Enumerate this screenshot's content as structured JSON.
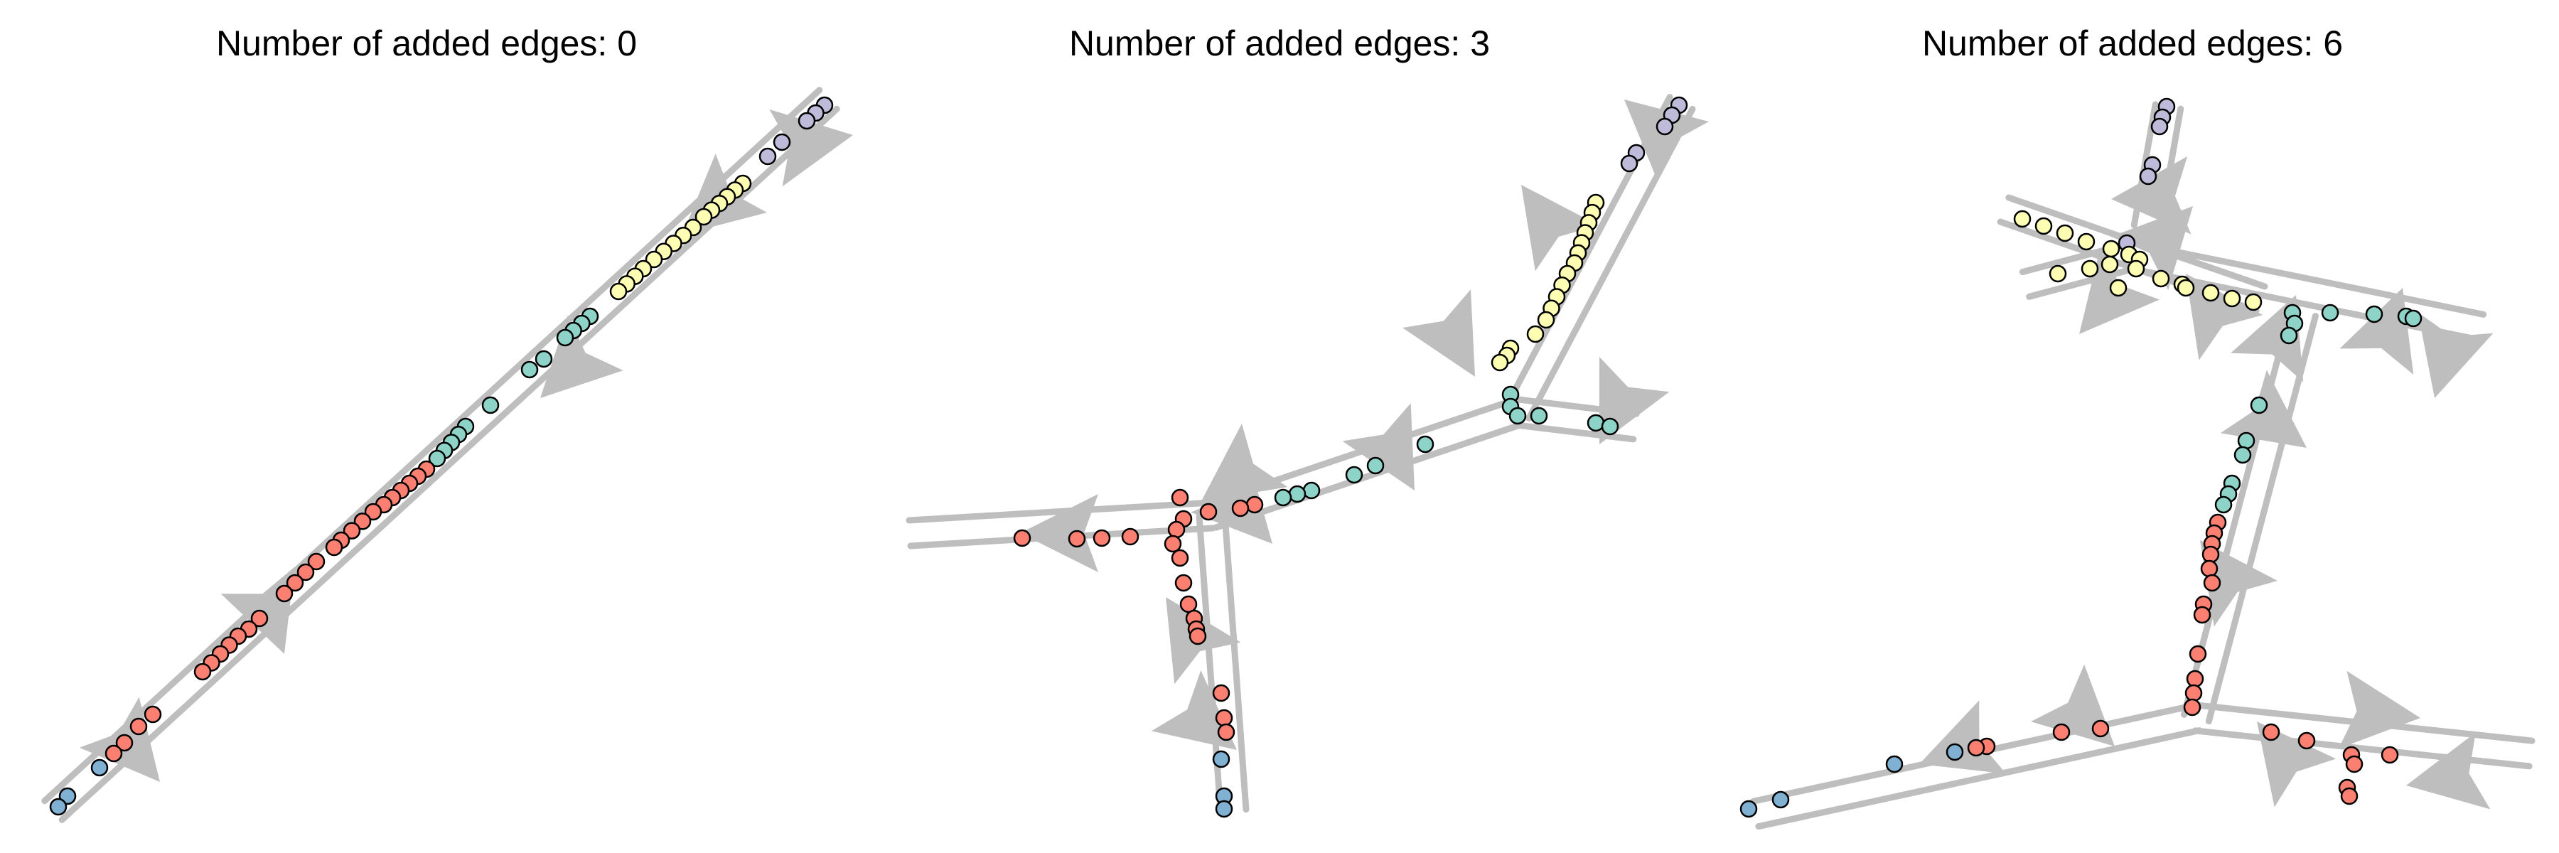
{
  "panels": [
    {
      "title": "Number of added edges: 0"
    },
    {
      "title": "Number of added edges: 3"
    },
    {
      "title": "Number of added edges: 6"
    }
  ],
  "colors": {
    "edge": "#bebebe",
    "arrow": "#bebebe",
    "node_stroke": "#000000",
    "cluster_purple": "#bebada",
    "cluster_yellow": "#ffffb3",
    "cluster_teal": "#8dd3c7",
    "cluster_salmon": "#fb8072",
    "cluster_blue": "#80b1d3"
  }
}
